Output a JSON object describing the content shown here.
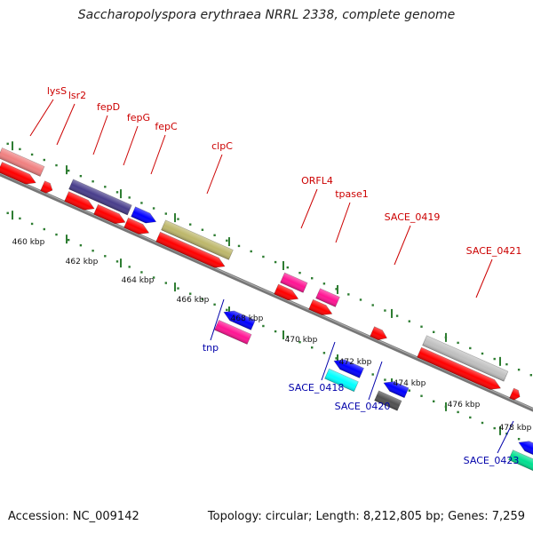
{
  "map": {
    "title": "Saccharopolyspora erythraea NRRL 2338, complete genome",
    "accession": "Accession: NC_009142",
    "summary": "Topology: circular; Length: 8,212,805 bp; Genes: 7,259",
    "colors": {
      "backbone": "#808080",
      "forward_label": "#cc0000",
      "reverse_label": "#0000aa",
      "tick": "#2e7d32"
    },
    "tick_labels": [
      "460 kbp",
      "462 kbp",
      "464 kbp",
      "466 kbp",
      "468 kbp",
      "470 kbp",
      "472 kbp",
      "474 kbp",
      "476 kbp",
      "478 kbp"
    ],
    "labels": {
      "lysS": "lysS",
      "lsr2": "lsr2",
      "fepD": "fepD",
      "fepG": "fepG",
      "fepC": "fepC",
      "clpC": "clpC",
      "ORFL4": "ORFL4",
      "tpase1": "tpase1",
      "SACE_0419": "SACE_0419",
      "SACE_0421": "SACE_0421",
      "tnp": "tnp",
      "SACE_0418": "SACE_0418",
      "SACE_0420": "SACE_0420",
      "SACE_0423": "SACE_0423"
    },
    "feature_colors": {
      "lysS": "#f08080",
      "fepD": "#483d8b",
      "fepD_tail": "#0000ff",
      "clpC": "#bdb76b",
      "ORFL4": "#ff1493",
      "tpase1": "#ff1493",
      "SACE_0421": "#c0c0c0",
      "tnp_upper": "#0000ff",
      "tnp": "#ff1493",
      "SACE_0418_upper": "#0000ff",
      "SACE_0418": "#00ffff",
      "SACE_0420_upper": "#0000ff",
      "SACE_0420": "#505050",
      "SACE_0423_upper": "#0000ff",
      "SACE_0423": "#00e090",
      "cds": "#ff0000"
    }
  }
}
